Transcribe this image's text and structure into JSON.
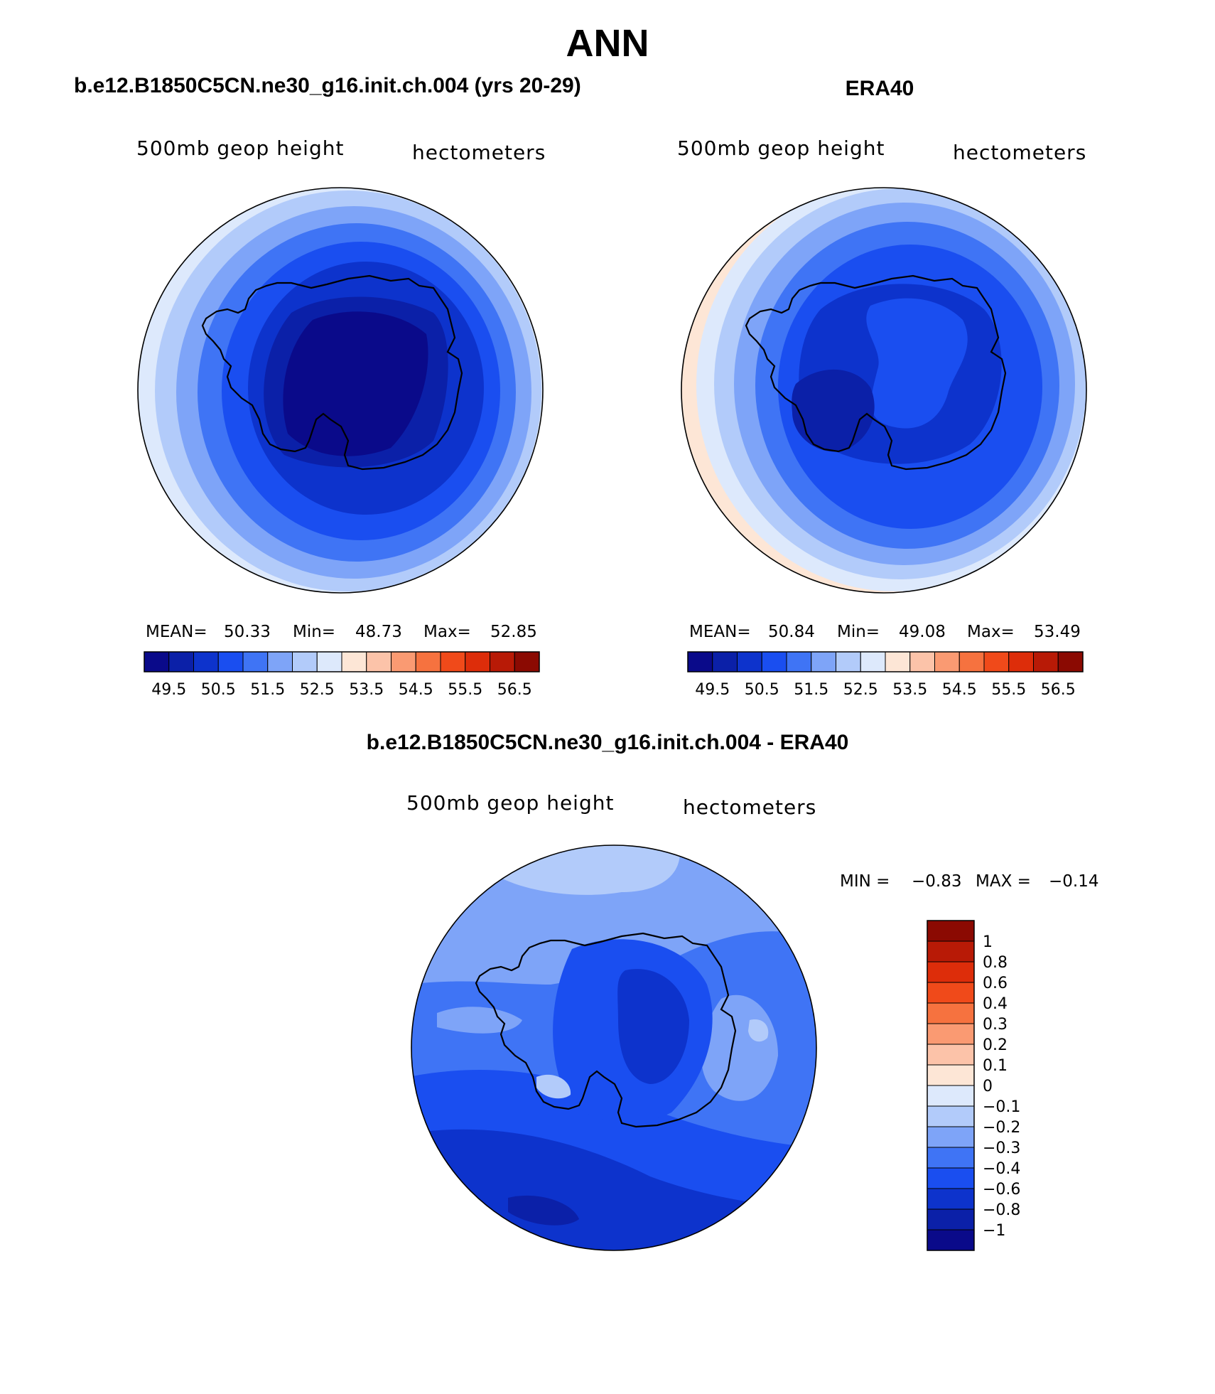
{
  "figure": {
    "title": "ANN"
  },
  "panels": [
    {
      "title": "b.e12.B1850C5CN.ne30_g16.init.ch.004 (yrs 20-29)",
      "variable": "500mb geop height",
      "units": "hectometers",
      "stats": {
        "mean_label": "MEAN=",
        "mean": "50.33",
        "min_label": "Min=",
        "min": "48.73",
        "max_label": "Max=",
        "max": "52.85"
      },
      "colorbar": {
        "colors": [
          "#0a0a8a",
          "#0b20a8",
          "#0d33cc",
          "#1a4ef0",
          "#3f74f5",
          "#7ea4f8",
          "#b2cbfa",
          "#dde9fc",
          "#fde6d6",
          "#fcc3a9",
          "#fa9a72",
          "#f6723f",
          "#f04a1a",
          "#dd2d0a",
          "#b81a06",
          "#8b0a02"
        ],
        "labels": [
          "49.5",
          "50.5",
          "51.5",
          "52.5",
          "53.5",
          "54.5",
          "55.5",
          "56.5"
        ]
      }
    },
    {
      "title": "ERA40",
      "variable": "500mb geop height",
      "units": "hectometers",
      "stats": {
        "mean_label": "MEAN=",
        "mean": "50.84",
        "min_label": "Min=",
        "min": "49.08",
        "max_label": "Max=",
        "max": "53.49"
      },
      "colorbar": {
        "colors": [
          "#0a0a8a",
          "#0b20a8",
          "#0d33cc",
          "#1a4ef0",
          "#3f74f5",
          "#7ea4f8",
          "#b2cbfa",
          "#dde9fc",
          "#fde6d6",
          "#fcc3a9",
          "#fa9a72",
          "#f6723f",
          "#f04a1a",
          "#dd2d0a",
          "#b81a06",
          "#8b0a02"
        ],
        "labels": [
          "49.5",
          "50.5",
          "51.5",
          "52.5",
          "53.5",
          "54.5",
          "55.5",
          "56.5"
        ]
      }
    },
    {
      "title": "b.e12.B1850C5CN.ne30_g16.init.ch.004 - ERA40",
      "variable": "500mb geop height",
      "units": "hectometers",
      "stats": {
        "min_label": "MIN =",
        "min": "−0.83",
        "max_label": "MAX =",
        "max": "−0.14"
      },
      "colorbar": {
        "colors_top_to_bottom": [
          "#8b0a02",
          "#b81a06",
          "#dd2d0a",
          "#f04a1a",
          "#f6723f",
          "#fa9a72",
          "#fcc3a9",
          "#fde6d6",
          "#dde9fc",
          "#b2cbfa",
          "#7ea4f8",
          "#3f74f5",
          "#1a4ef0",
          "#0d33cc",
          "#0b20a8",
          "#0a0a8a"
        ],
        "labels": [
          "1",
          "0.8",
          "0.6",
          "0.4",
          "0.3",
          "0.2",
          "0.1",
          "0",
          "−0.1",
          "−0.2",
          "−0.3",
          "−0.4",
          "−0.6",
          "−0.8",
          "−1"
        ]
      }
    }
  ]
}
